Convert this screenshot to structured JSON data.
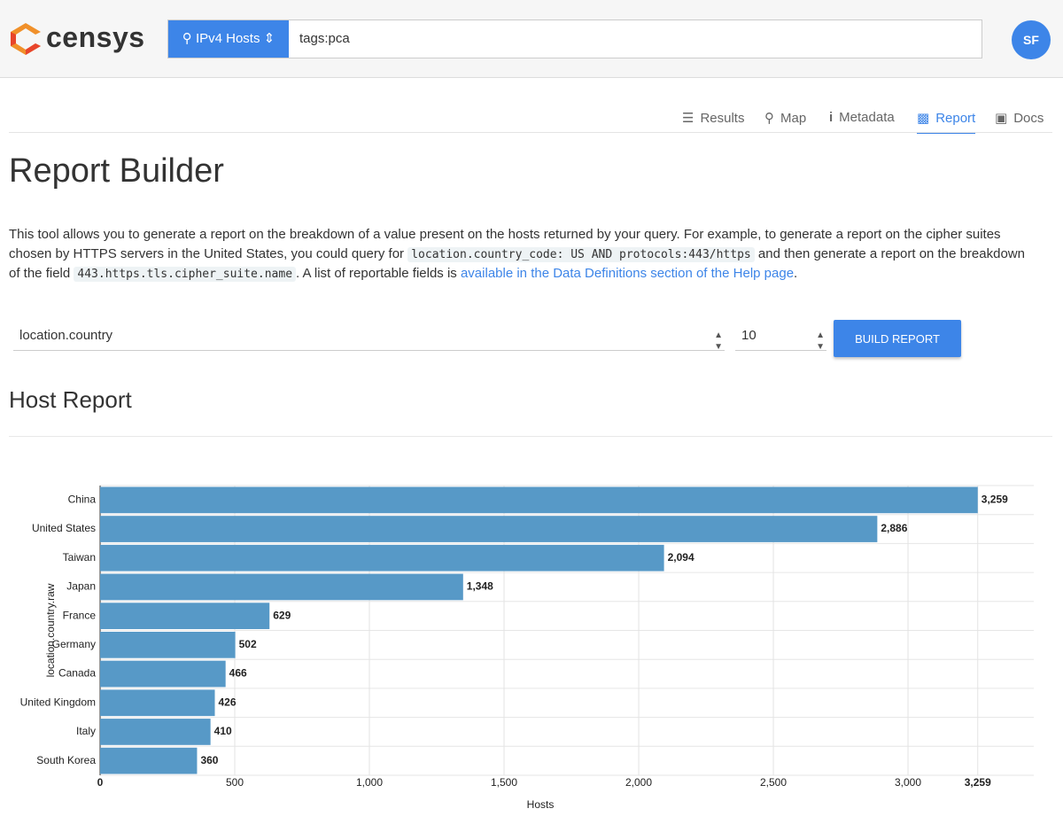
{
  "header": {
    "logo": "censys",
    "search_type": "IPv4 Hosts",
    "query": "tags:pca",
    "avatar": "SF"
  },
  "nav": [
    "Results",
    "Map",
    "Metadata",
    "Report",
    "Docs"
  ],
  "heading": "Report Builder",
  "description": [
    "This tool allows you to generate a report on the breakdown of a value present on the hosts returned by your query. For example, to generate a report on the cipher suites chosen by HTTPS servers in the United States, you could query for ",
    "location.country_code: US AND protocols:443/https",
    " and then generate a report on the breakdown of the field ",
    "443.https.tls.cipher_suite.name",
    ". A list of reportable fields is ",
    "available in the Data Definitions section of the Help page",
    "."
  ],
  "form": {
    "field": "location.country",
    "count": "10",
    "button": "BUILD REPORT"
  },
  "report_heading": "Host Report",
  "chart_data": {
    "type": "hbar",
    "categories": [
      "China",
      "United States",
      "Taiwan",
      "Japan",
      "France",
      "Germany",
      "Canada",
      "United Kingdom",
      "Italy",
      "South Korea"
    ],
    "values": [
      3259,
      2886,
      2094,
      1348,
      629,
      502,
      466,
      426,
      410,
      360
    ],
    "value_labels": [
      "3,259",
      "2,886",
      "2,094",
      "1,348",
      "629",
      "502",
      "466",
      "426",
      "410",
      "360"
    ],
    "color": "#5799c7",
    "x_label": "Hosts",
    "y_label": "location.country.raw",
    "xlim": [
      0,
      3467
    ],
    "xticks": [
      0,
      500,
      {
        "value": 1000,
        "label": "1,000"
      },
      {
        "value": 1500,
        "label": "1,500"
      },
      {
        "value": 2000,
        "label": "2,000"
      },
      {
        "value": 2500,
        "label": "2,500"
      },
      {
        "value": 3000,
        "label": "3,000"
      },
      {
        "value": 3259,
        "label": "3,259"
      }
    ],
    "grid": true
  }
}
